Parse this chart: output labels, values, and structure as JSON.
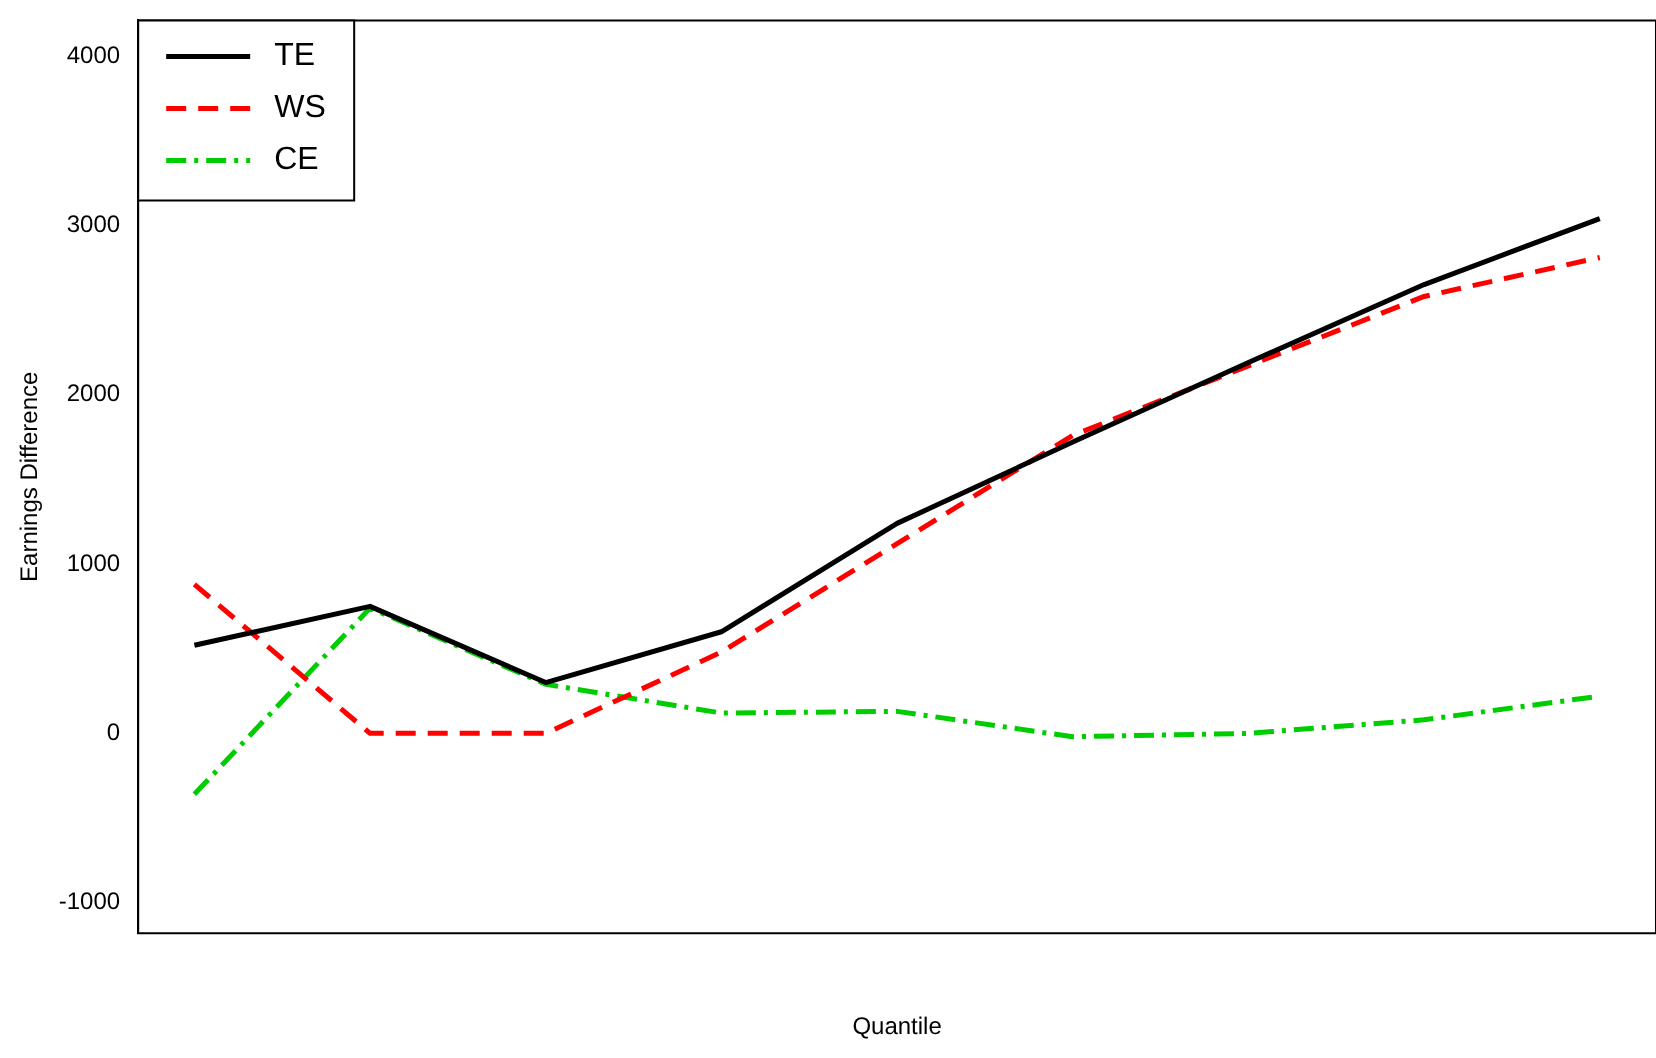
{
  "chart_data": {
    "type": "line",
    "xlabel": "Quantile",
    "ylabel": "Earnings Difference",
    "categories": [
      null,
      null,
      null,
      null,
      null,
      null,
      null,
      null,
      null
    ],
    "series": [
      {
        "name": "TE",
        "color": "#000000",
        "line_style": "solid",
        "values": [
          520,
          750,
          300,
          600,
          1240,
          1720,
          2190,
          2650,
          3040
        ]
      },
      {
        "name": "WS",
        "color": "#ff0000",
        "line_style": "dashed",
        "values": [
          880,
          0,
          0,
          480,
          1120,
          1760,
          2170,
          2580,
          2810
        ]
      },
      {
        "name": "CE",
        "color": "#00cd00",
        "line_style": "dashdot",
        "values": [
          -360,
          740,
          290,
          120,
          130,
          -20,
          0,
          80,
          220
        ]
      }
    ],
    "ylim": [
      -1180,
      4210
    ],
    "yticks": [
      -1000,
      0,
      1000,
      2000,
      3000,
      4000
    ],
    "tick_labels": "y",
    "grid": false,
    "legend": "top left",
    "marker": "none"
  }
}
